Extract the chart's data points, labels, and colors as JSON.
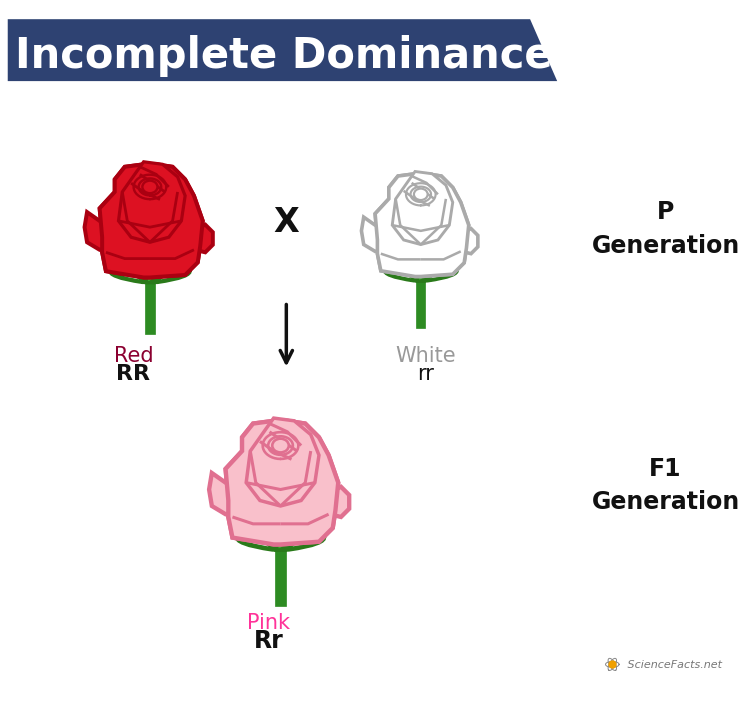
{
  "title": "Incomplete Dominance",
  "title_bg_color": "#2E4272",
  "title_text_color": "#FFFFFF",
  "background_color": "#FFFFFF",
  "red_rose_color": "#DD1122",
  "red_rose_outline": "#AA0011",
  "white_rose_color": "#FFFFFF",
  "white_rose_outline": "#AAAAAA",
  "pink_rose_color": "#F9C0CB",
  "pink_rose_outline": "#E07090",
  "green_stem_color": "#2D8B22",
  "green_leaf_color": "#3AAA2A",
  "green_leaf_dark": "#2A7A1A",
  "label_red_color": "#8B0030",
  "label_white_color": "#999999",
  "label_pink_color": "#FF3399",
  "label_black_color": "#111111",
  "cross_x": "X",
  "arrow_color": "#111111",
  "p_gen_label": "P\nGeneration",
  "f1_gen_label": "F1\nGeneration",
  "red_label": "Red",
  "red_genotype": "RR",
  "white_label": "White",
  "white_genotype": "rr",
  "pink_label": "Pink",
  "pink_genotype": "Rr",
  "watermark": " ScienceFacts.net"
}
